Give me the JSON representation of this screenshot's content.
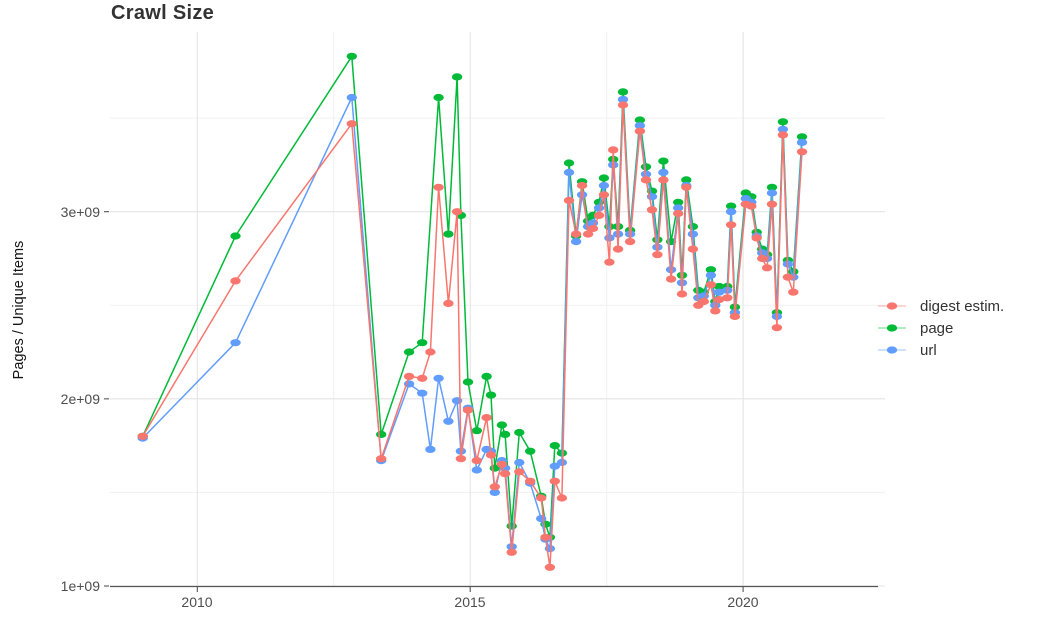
{
  "title": "Crawl Size",
  "ylabel": "Pages / Unique Items",
  "axes": {
    "y_ticks": [
      "1e+09",
      "2e+09",
      "3e+09"
    ],
    "x_ticks": [
      "2010",
      "2015",
      "2020"
    ]
  },
  "legend": {
    "items": [
      {
        "label": "digest estim.",
        "color": "#F8766D"
      },
      {
        "label": "page",
        "color": "#00BA38"
      },
      {
        "label": "url",
        "color": "#619CFF"
      }
    ]
  },
  "colors": {
    "grid_major": "#E4E4E4",
    "grid_minor": "#F1F1F1",
    "axis_line": "#555555",
    "tick_text": "#4d4d4d"
  },
  "chart_data": {
    "type": "line",
    "title": "Crawl Size",
    "xlabel": "",
    "ylabel": "Pages / Unique Items",
    "xlim": [
      2008.4,
      2022.6
    ],
    "ylim": [
      1000000000.0,
      3960000000.0
    ],
    "x_major": [
      2010,
      2015,
      2020
    ],
    "x_minor": [
      2012.5,
      2017.5
    ],
    "y_major": [
      1000000000.0,
      2000000000.0,
      3000000000.0
    ],
    "y_minor": [
      1500000000.0,
      2500000000.0,
      3500000000.0
    ],
    "grid": true,
    "legend_position": "right",
    "marker": "ellipse",
    "series": [
      {
        "name": "digest estim.",
        "color": "#F8766D",
        "points": [
          [
            2009.0,
            1800000000.0
          ],
          [
            2010.7,
            2630000000.0
          ],
          [
            2012.83,
            3470000000.0
          ],
          [
            2013.37,
            1680000000.0
          ],
          [
            2013.88,
            2120000000.0
          ],
          [
            2014.12,
            2110000000.0
          ],
          [
            2014.27,
            2250000000.0
          ],
          [
            2014.42,
            3130000000.0
          ],
          [
            2014.6,
            2510000000.0
          ],
          [
            2014.76,
            3000000000.0
          ],
          [
            2014.83,
            1680000000.0
          ],
          [
            2014.96,
            1940000000.0
          ],
          [
            2015.12,
            1670000000.0
          ],
          [
            2015.3,
            1900000000.0
          ],
          [
            2015.38,
            1700000000.0
          ],
          [
            2015.45,
            1530000000.0
          ],
          [
            2015.58,
            1650000000.0
          ],
          [
            2015.64,
            1600000000.0
          ],
          [
            2015.76,
            1180000000.0
          ],
          [
            2015.9,
            1610000000.0
          ],
          [
            2016.1,
            1560000000.0
          ],
          [
            2016.3,
            1470000000.0
          ],
          [
            2016.38,
            1260000000.0
          ],
          [
            2016.46,
            1100000000.0
          ],
          [
            2016.55,
            1560000000.0
          ],
          [
            2016.68,
            1470000000.0
          ],
          [
            2016.81,
            3060000000.0
          ],
          [
            2016.94,
            2880000000.0
          ],
          [
            2017.05,
            3140000000.0
          ],
          [
            2017.16,
            2880000000.0
          ],
          [
            2017.25,
            2910000000.0
          ],
          [
            2017.36,
            2980000000.0
          ],
          [
            2017.45,
            3090000000.0
          ],
          [
            2017.55,
            2730000000.0
          ],
          [
            2017.62,
            3330000000.0
          ],
          [
            2017.71,
            2800000000.0
          ],
          [
            2017.8,
            3570000000.0
          ],
          [
            2017.93,
            2840000000.0
          ],
          [
            2018.11,
            3430000000.0
          ],
          [
            2018.22,
            3170000000.0
          ],
          [
            2018.33,
            3010000000.0
          ],
          [
            2018.43,
            2770000000.0
          ],
          [
            2018.54,
            3170000000.0
          ],
          [
            2018.68,
            2640000000.0
          ],
          [
            2018.81,
            2990000000.0
          ],
          [
            2018.88,
            2560000000.0
          ],
          [
            2018.96,
            3130000000.0
          ],
          [
            2019.08,
            2800000000.0
          ],
          [
            2019.18,
            2500000000.0
          ],
          [
            2019.28,
            2520000000.0
          ],
          [
            2019.41,
            2610000000.0
          ],
          [
            2019.49,
            2470000000.0
          ],
          [
            2019.56,
            2530000000.0
          ],
          [
            2019.71,
            2540000000.0
          ],
          [
            2019.78,
            2930000000.0
          ],
          [
            2019.85,
            2440000000.0
          ],
          [
            2020.05,
            3040000000.0
          ],
          [
            2020.15,
            3030000000.0
          ],
          [
            2020.25,
            2860000000.0
          ],
          [
            2020.35,
            2750000000.0
          ],
          [
            2020.44,
            2700000000.0
          ],
          [
            2020.53,
            3040000000.0
          ],
          [
            2020.62,
            2380000000.0
          ],
          [
            2020.73,
            3410000000.0
          ],
          [
            2020.82,
            2650000000.0
          ],
          [
            2020.92,
            2570000000.0
          ],
          [
            2021.08,
            3320000000.0
          ]
        ]
      },
      {
        "name": "page",
        "color": "#00BA38",
        "points": [
          [
            2009.0,
            1800000000.0
          ],
          [
            2010.7,
            2870000000.0
          ],
          [
            2012.83,
            3830000000.0
          ],
          [
            2013.37,
            1810000000.0
          ],
          [
            2013.88,
            2250000000.0
          ],
          [
            2014.12,
            2300000000.0
          ],
          [
            2014.42,
            3610000000.0
          ],
          [
            2014.6,
            2880000000.0
          ],
          [
            2014.76,
            3720000000.0
          ],
          [
            2014.83,
            2980000000.0
          ],
          [
            2014.96,
            2090000000.0
          ],
          [
            2015.12,
            1830000000.0
          ],
          [
            2015.3,
            2120000000.0
          ],
          [
            2015.38,
            2020000000.0
          ],
          [
            2015.45,
            1630000000.0
          ],
          [
            2015.58,
            1860000000.0
          ],
          [
            2015.64,
            1810000000.0
          ],
          [
            2015.76,
            1320000000.0
          ],
          [
            2015.9,
            1820000000.0
          ],
          [
            2016.1,
            1720000000.0
          ],
          [
            2016.3,
            1480000000.0
          ],
          [
            2016.38,
            1330000000.0
          ],
          [
            2016.46,
            1260000000.0
          ],
          [
            2016.55,
            1750000000.0
          ],
          [
            2016.68,
            1710000000.0
          ],
          [
            2016.81,
            3260000000.0
          ],
          [
            2016.94,
            2870000000.0
          ],
          [
            2017.05,
            3160000000.0
          ],
          [
            2017.16,
            2950000000.0
          ],
          [
            2017.25,
            2980000000.0
          ],
          [
            2017.36,
            3050000000.0
          ],
          [
            2017.45,
            3180000000.0
          ],
          [
            2017.55,
            2920000000.0
          ],
          [
            2017.62,
            3280000000.0
          ],
          [
            2017.71,
            2920000000.0
          ],
          [
            2017.8,
            3640000000.0
          ],
          [
            2017.93,
            2900000000.0
          ],
          [
            2018.11,
            3490000000.0
          ],
          [
            2018.22,
            3240000000.0
          ],
          [
            2018.33,
            3110000000.0
          ],
          [
            2018.43,
            2850000000.0
          ],
          [
            2018.54,
            3270000000.0
          ],
          [
            2018.68,
            2840000000.0
          ],
          [
            2018.81,
            3050000000.0
          ],
          [
            2018.88,
            2660000000.0
          ],
          [
            2018.96,
            3170000000.0
          ],
          [
            2019.08,
            2920000000.0
          ],
          [
            2019.18,
            2580000000.0
          ],
          [
            2019.28,
            2570000000.0
          ],
          [
            2019.41,
            2690000000.0
          ],
          [
            2019.49,
            2520000000.0
          ],
          [
            2019.56,
            2600000000.0
          ],
          [
            2019.71,
            2600000000.0
          ],
          [
            2019.78,
            3030000000.0
          ],
          [
            2019.85,
            2490000000.0
          ],
          [
            2020.05,
            3100000000.0
          ],
          [
            2020.15,
            3080000000.0
          ],
          [
            2020.25,
            2890000000.0
          ],
          [
            2020.35,
            2800000000.0
          ],
          [
            2020.44,
            2770000000.0
          ],
          [
            2020.53,
            3130000000.0
          ],
          [
            2020.62,
            2460000000.0
          ],
          [
            2020.73,
            3480000000.0
          ],
          [
            2020.82,
            2740000000.0
          ],
          [
            2020.92,
            2680000000.0
          ],
          [
            2021.08,
            3400000000.0
          ]
        ]
      },
      {
        "name": "url",
        "color": "#619CFF",
        "points": [
          [
            2009.0,
            1790000000.0
          ],
          [
            2010.7,
            2300000000.0
          ],
          [
            2012.83,
            3610000000.0
          ],
          [
            2013.37,
            1670000000.0
          ],
          [
            2013.88,
            2080000000.0
          ],
          [
            2014.12,
            2030000000.0
          ],
          [
            2014.27,
            1730000000.0
          ],
          [
            2014.42,
            2110000000.0
          ],
          [
            2014.6,
            1880000000.0
          ],
          [
            2014.76,
            1990000000.0
          ],
          [
            2014.83,
            1720000000.0
          ],
          [
            2014.96,
            1950000000.0
          ],
          [
            2015.12,
            1620000000.0
          ],
          [
            2015.3,
            1730000000.0
          ],
          [
            2015.38,
            1720000000.0
          ],
          [
            2015.45,
            1500000000.0
          ],
          [
            2015.58,
            1670000000.0
          ],
          [
            2015.64,
            1630000000.0
          ],
          [
            2015.76,
            1210000000.0
          ],
          [
            2015.9,
            1660000000.0
          ],
          [
            2016.1,
            1550000000.0
          ],
          [
            2016.3,
            1360000000.0
          ],
          [
            2016.38,
            1250000000.0
          ],
          [
            2016.46,
            1200000000.0
          ],
          [
            2016.55,
            1640000000.0
          ],
          [
            2016.68,
            1660000000.0
          ],
          [
            2016.81,
            3210000000.0
          ],
          [
            2016.94,
            2840000000.0
          ],
          [
            2017.05,
            3090000000.0
          ],
          [
            2017.16,
            2920000000.0
          ],
          [
            2017.25,
            2940000000.0
          ],
          [
            2017.36,
            3020000000.0
          ],
          [
            2017.45,
            3140000000.0
          ],
          [
            2017.55,
            2860000000.0
          ],
          [
            2017.62,
            3250000000.0
          ],
          [
            2017.71,
            2880000000.0
          ],
          [
            2017.8,
            3600000000.0
          ],
          [
            2017.93,
            2880000000.0
          ],
          [
            2018.11,
            3460000000.0
          ],
          [
            2018.22,
            3200000000.0
          ],
          [
            2018.33,
            3080000000.0
          ],
          [
            2018.43,
            2810000000.0
          ],
          [
            2018.54,
            3210000000.0
          ],
          [
            2018.68,
            2690000000.0
          ],
          [
            2018.81,
            3020000000.0
          ],
          [
            2018.88,
            2620000000.0
          ],
          [
            2018.96,
            3140000000.0
          ],
          [
            2019.08,
            2880000000.0
          ],
          [
            2019.18,
            2540000000.0
          ],
          [
            2019.28,
            2550000000.0
          ],
          [
            2019.41,
            2660000000.0
          ],
          [
            2019.49,
            2500000000.0
          ],
          [
            2019.56,
            2570000000.0
          ],
          [
            2019.71,
            2580000000.0
          ],
          [
            2019.78,
            3000000000.0
          ],
          [
            2019.85,
            2460000000.0
          ],
          [
            2020.05,
            3070000000.0
          ],
          [
            2020.15,
            3050000000.0
          ],
          [
            2020.25,
            2870000000.0
          ],
          [
            2020.35,
            2780000000.0
          ],
          [
            2020.44,
            2750000000.0
          ],
          [
            2020.53,
            3100000000.0
          ],
          [
            2020.62,
            2440000000.0
          ],
          [
            2020.73,
            3440000000.0
          ],
          [
            2020.82,
            2720000000.0
          ],
          [
            2020.92,
            2650000000.0
          ],
          [
            2021.08,
            3370000000.0
          ]
        ]
      }
    ]
  }
}
